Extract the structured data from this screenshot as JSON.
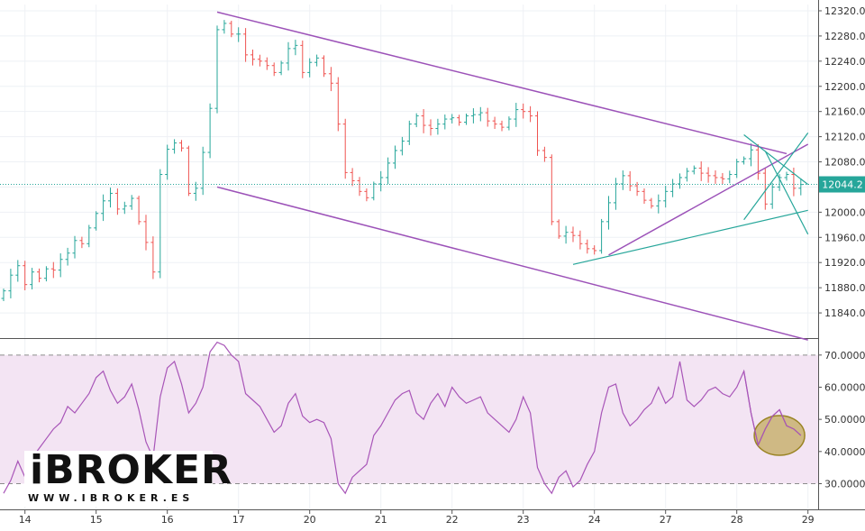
{
  "chart_data": [
    {
      "type": "candlestick",
      "price_scale": {
        "ylim": [
          11800,
          12330
        ],
        "ticks": [
          "12320.0",
          "12280.0",
          "12240.0",
          "12200.0",
          "12160.0",
          "12120.0",
          "12080.0",
          "12040.0",
          "12000.0",
          "11960.0",
          "11920.0",
          "11880.0",
          "11840.0"
        ],
        "tick_values": [
          12320,
          12280,
          12240,
          12200,
          12160,
          12120,
          12080,
          12040,
          12000,
          11960,
          11920,
          11880,
          11840
        ]
      },
      "current_price": {
        "label": "12044.2",
        "value": 12044.2,
        "color": "#26a69a"
      },
      "x_axis": {
        "labels": [
          "14",
          "15",
          "16",
          "17",
          "20",
          "21",
          "22",
          "23",
          "24",
          "27",
          "28",
          "29"
        ],
        "index": [
          3,
          13,
          23,
          33,
          43,
          53,
          63,
          73,
          83,
          93,
          103,
          113
        ]
      },
      "candles": {
        "count": 113,
        "close": [
          11875,
          11900,
          11915,
          11885,
          11905,
          11895,
          11910,
          11908,
          11925,
          11935,
          11955,
          11950,
          11975,
          11998,
          12018,
          12030,
          12005,
          12010,
          12022,
          11985,
          11952,
          11905,
          12060,
          12100,
          12110,
          12102,
          12030,
          12038,
          12095,
          12165,
          12290,
          12300,
          12283,
          12283,
          12250,
          12243,
          12240,
          12233,
          12222,
          12237,
          12260,
          12265,
          12222,
          12238,
          12245,
          12220,
          12205,
          12140,
          12063,
          12050,
          12033,
          12023,
          12045,
          12055,
          12078,
          12098,
          12113,
          12140,
          12153,
          12138,
          12133,
          12140,
          12148,
          12150,
          12143,
          12153,
          12155,
          12158,
          12145,
          12140,
          12135,
          12148,
          12163,
          12160,
          12153,
          12098,
          12087,
          11985,
          11962,
          11968,
          11963,
          11950,
          11942,
          11939,
          11985,
          12015,
          12045,
          12058,
          12042,
          12033,
          12019,
          12010,
          12018,
          12033,
          12045,
          12055,
          12065,
          12070,
          12062,
          12058,
          12055,
          12053,
          12060,
          12080,
          12085,
          12099,
          12062,
          12013,
          12040,
          12055,
          12060,
          12038,
          12044
        ],
        "up_color": "#26a69a",
        "down_color": "#ef5350"
      },
      "channel_lines": [
        {
          "color": "#9c52b8",
          "points": [
            [
              30,
              12318
            ],
            [
              110,
              12093
            ]
          ]
        },
        {
          "color": "#9c52b8",
          "points": [
            [
              30,
              12040
            ],
            [
              113,
              11797
            ]
          ]
        },
        {
          "color": "#9c52b8",
          "points": [
            [
              85,
              11932
            ],
            [
              113,
              12108
            ]
          ]
        },
        {
          "color": "#26a69a",
          "points": [
            [
              80,
              11917
            ],
            [
              113,
              12003
            ]
          ]
        },
        {
          "color": "#26a69a",
          "points": [
            [
              104,
              11988
            ],
            [
              113,
              12126
            ]
          ]
        },
        {
          "color": "#26a69a",
          "points": [
            [
              104,
              12123
            ],
            [
              113,
              12044
            ]
          ]
        },
        {
          "color": "#26a69a",
          "points": [
            [
              107,
              12097
            ],
            [
              113,
              11965
            ]
          ]
        }
      ]
    },
    {
      "type": "line",
      "indicator": "RSI",
      "ylim": [
        22,
        75
      ],
      "ticks": [
        "70.0000",
        "60.0000",
        "50.0000",
        "40.0000",
        "30.0000"
      ],
      "tick_values": [
        70,
        60,
        50,
        40,
        30
      ],
      "band": [
        30,
        70
      ],
      "line_color": "#a855b8",
      "values": [
        27,
        31,
        37,
        32,
        38,
        41,
        44,
        47,
        49,
        54,
        52,
        55,
        58,
        63,
        65,
        59,
        55,
        57,
        61,
        53,
        43,
        38,
        57,
        66,
        68,
        61,
        52,
        55,
        60,
        71,
        74,
        73,
        70,
        68,
        58,
        56,
        54,
        50,
        46,
        48,
        55,
        58,
        51,
        49,
        50,
        49,
        44,
        30,
        27,
        32,
        34,
        36,
        45,
        48,
        52,
        56,
        58,
        59,
        52,
        50,
        55,
        58,
        54,
        60,
        57,
        55,
        56,
        57,
        52,
        50,
        48,
        46,
        50,
        57,
        52,
        35,
        30,
        27,
        32,
        34,
        29,
        31,
        36,
        40,
        52,
        60,
        61,
        52,
        48,
        50,
        53,
        55,
        60,
        55,
        57,
        68,
        56,
        54,
        56,
        59,
        60,
        58,
        57,
        60,
        65,
        52,
        42,
        47,
        51,
        53,
        48,
        47,
        45
      ]
    }
  ]
}
